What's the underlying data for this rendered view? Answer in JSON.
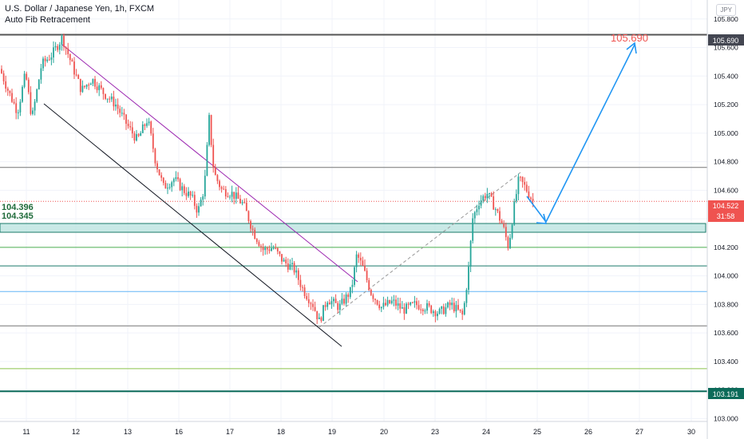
{
  "header": {
    "title": "U.S. Dollar / Japanese Yen, 1h, FXCM",
    "indicator": "Auto Fib Retracement",
    "currency_button": "JPY"
  },
  "levels_left": {
    "upper": "104.396",
    "lower": "104.345"
  },
  "chart_data": {
    "type": "candlestick",
    "x_tick_labels": [
      "11",
      "12",
      "13",
      "16",
      "17",
      "18",
      "19",
      "20",
      "23",
      "24",
      "25",
      "26",
      "27",
      "30"
    ],
    "y_tick_labels": [
      "103.000",
      "103.200",
      "103.400",
      "103.600",
      "103.800",
      "104.000",
      "104.200",
      "104.400",
      "104.600",
      "104.800",
      "105.000",
      "105.200",
      "105.400",
      "105.600",
      "105.800"
    ],
    "ylim": [
      102.98,
      105.93
    ],
    "price_badges": {
      "target": "105.690",
      "current": "104.522",
      "countdown": "31:58",
      "bottom": "103.191"
    },
    "target_annotation": "105.690",
    "fib_levels": [
      105.69,
      104.76,
      104.2,
      104.07,
      103.89,
      103.65,
      103.35,
      103.191
    ],
    "zone": [
      104.345,
      104.396
    ],
    "price_path": [
      [
        0,
        105.45
      ],
      [
        10,
        105.3
      ],
      [
        22,
        105.15
      ],
      [
        32,
        105.42
      ],
      [
        40,
        105.1
      ],
      [
        52,
        105.48
      ],
      [
        65,
        105.55
      ],
      [
        78,
        105.67
      ],
      [
        90,
        105.48
      ],
      [
        102,
        105.3
      ],
      [
        115,
        105.38
      ],
      [
        130,
        105.28
      ],
      [
        145,
        105.2
      ],
      [
        160,
        105.05
      ],
      [
        172,
        104.95
      ],
      [
        185,
        105.1
      ],
      [
        195,
        104.8
      ],
      [
        205,
        104.62
      ],
      [
        218,
        104.68
      ],
      [
        230,
        104.6
      ],
      [
        240,
        104.55
      ],
      [
        248,
        104.45
      ],
      [
        256,
        104.62
      ],
      [
        262,
        105.1
      ],
      [
        268,
        104.72
      ],
      [
        278,
        104.6
      ],
      [
        290,
        104.58
      ],
      [
        305,
        104.5
      ],
      [
        318,
        104.3
      ],
      [
        330,
        104.18
      ],
      [
        342,
        104.2
      ],
      [
        355,
        104.1
      ],
      [
        368,
        104.05
      ],
      [
        380,
        103.9
      ],
      [
        392,
        103.8
      ],
      [
        400,
        103.68
      ],
      [
        410,
        103.84
      ],
      [
        425,
        103.78
      ],
      [
        440,
        103.9
      ],
      [
        447,
        104.15
      ],
      [
        455,
        104.05
      ],
      [
        465,
        103.88
      ],
      [
        478,
        103.78
      ],
      [
        492,
        103.82
      ],
      [
        505,
        103.76
      ],
      [
        520,
        103.8
      ],
      [
        535,
        103.78
      ],
      [
        550,
        103.74
      ],
      [
        565,
        103.8
      ],
      [
        580,
        103.72
      ],
      [
        587,
        104.05
      ],
      [
        592,
        104.4
      ],
      [
        600,
        104.52
      ],
      [
        610,
        104.58
      ],
      [
        620,
        104.48
      ],
      [
        630,
        104.35
      ],
      [
        637,
        104.2
      ],
      [
        643,
        104.45
      ],
      [
        650,
        104.68
      ],
      [
        658,
        104.62
      ],
      [
        668,
        104.52
      ]
    ]
  }
}
